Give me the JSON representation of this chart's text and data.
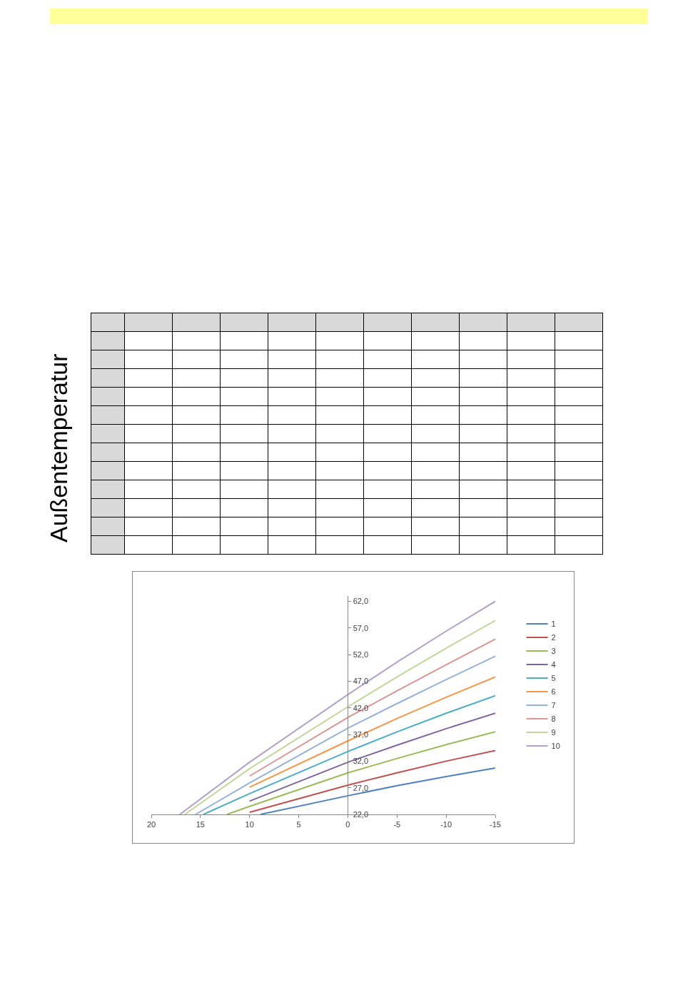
{
  "chart_data": {
    "type": "line",
    "annotations": [
      "Außentemperatur"
    ],
    "xlim": [
      20,
      -15
    ],
    "xticks": [
      20,
      15,
      10,
      5,
      0,
      -5,
      -10,
      -15
    ],
    "ylim": [
      22,
      63
    ],
    "yticks": [
      {
        "value": 22,
        "label": "22,0"
      },
      {
        "value": 27,
        "label": "27,0"
      },
      {
        "value": 32,
        "label": "32,0"
      },
      {
        "value": 37,
        "label": "37,0"
      },
      {
        "value": 42,
        "label": "42,0"
      },
      {
        "value": 47,
        "label": "47,0"
      },
      {
        "value": 52,
        "label": "52,0"
      },
      {
        "value": 57,
        "label": "57,0"
      },
      {
        "value": 62,
        "label": "62,0"
      }
    ],
    "grid": false,
    "legend": "right",
    "marker": "none",
    "line_style": "solid",
    "series": [
      {
        "name": "1",
        "color": "#4f81bd",
        "x": [
          8.9,
          0,
          -5,
          -10,
          -15
        ],
        "values": [
          22,
          25.5,
          27.4,
          29.1,
          30.7
        ]
      },
      {
        "name": "2",
        "color": "#c0504d",
        "x": [
          10,
          0,
          -5,
          -10,
          -15
        ],
        "values": [
          22.4,
          27.5,
          29.8,
          32,
          34
        ]
      },
      {
        "name": "3",
        "color": "#9bbb59",
        "x": [
          12.3,
          10,
          0,
          -5,
          -10,
          -15
        ],
        "values": [
          22,
          23.5,
          29.8,
          32.5,
          35.1,
          37.5
        ]
      },
      {
        "name": "4",
        "color": "#8064a2",
        "x": [
          10,
          0,
          -5,
          -10,
          -15
        ],
        "values": [
          24.5,
          31.8,
          35,
          38.1,
          41
        ]
      },
      {
        "name": "5",
        "color": "#4bacc6",
        "x": [
          14.7,
          10,
          0,
          -5,
          -10,
          -15
        ],
        "values": [
          22,
          25.9,
          33.8,
          37.5,
          41,
          44.3
        ]
      },
      {
        "name": "6",
        "color": "#f79646",
        "x": [
          10,
          0,
          -5,
          -10,
          -15
        ],
        "values": [
          27.1,
          35.8,
          40,
          44,
          47.8
        ]
      },
      {
        "name": "7",
        "color": "#95b3d7",
        "x": [
          15.5,
          10,
          0,
          -5,
          -10,
          -15
        ],
        "values": [
          22,
          27.9,
          38.2,
          42.8,
          47.3,
          51.7
        ]
      },
      {
        "name": "8",
        "color": "#d99694",
        "x": [
          10,
          0,
          -5,
          -10,
          -15
        ],
        "values": [
          29.2,
          40.2,
          45.2,
          50.1,
          54.9
        ]
      },
      {
        "name": "9",
        "color": "#c3d69b",
        "x": [
          16.6,
          10,
          0,
          -5,
          -10,
          -15
        ],
        "values": [
          22,
          30.6,
          42.2,
          47.8,
          53.2,
          58.4
        ]
      },
      {
        "name": "10",
        "color": "#b2a2c7",
        "x": [
          17.1,
          10,
          0,
          -5,
          -10,
          -15
        ],
        "values": [
          22,
          31.8,
          44.5,
          50.6,
          56.4,
          62
        ]
      }
    ]
  }
}
